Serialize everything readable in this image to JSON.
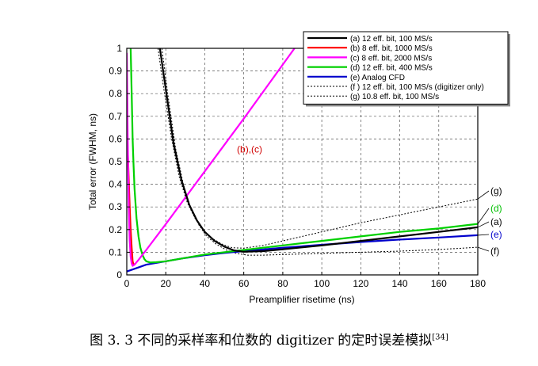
{
  "chart_data": {
    "type": "line",
    "xlabel": "Preamplifier risetime (ns)",
    "ylabel": "Total error (FWHM, ns)",
    "xlim": [
      0,
      180
    ],
    "ylim": [
      0,
      1
    ],
    "xticks": [
      "0",
      "20",
      "40",
      "60",
      "80",
      "100",
      "120",
      "140",
      "160",
      "180"
    ],
    "yticks": [
      "0",
      "0.1",
      "0.2",
      "0.3",
      "0.4",
      "0.5",
      "0.6",
      "0.7",
      "0.8",
      "0.9",
      "1"
    ],
    "grid": true,
    "legend_position": "top-right",
    "series": [
      {
        "name": "(a) 12 eff. bit, 100 MS/s",
        "end_label": "(a)",
        "color": "#000000",
        "style": "solid",
        "points": [
          [
            17,
            1.0
          ],
          [
            20,
            0.82
          ],
          [
            24,
            0.58
          ],
          [
            28,
            0.42
          ],
          [
            32,
            0.31
          ],
          [
            36,
            0.24
          ],
          [
            40,
            0.19
          ],
          [
            45,
            0.15
          ],
          [
            50,
            0.125
          ],
          [
            55,
            0.108
          ],
          [
            60,
            0.102
          ],
          [
            70,
            0.105
          ],
          [
            80,
            0.113
          ],
          [
            100,
            0.13
          ],
          [
            120,
            0.15
          ],
          [
            140,
            0.17
          ],
          [
            160,
            0.19
          ],
          [
            180,
            0.21
          ]
        ]
      },
      {
        "name": "(b) 8 eff. bit, 1000 MS/s",
        "end_label": "",
        "color": "#ff0000",
        "style": "solid",
        "points": [
          [
            0,
            0.68
          ],
          [
            0.5,
            0.55
          ],
          [
            1,
            0.42
          ],
          [
            1.5,
            0.3
          ],
          [
            2,
            0.2
          ],
          [
            2.5,
            0.12
          ],
          [
            3,
            0.06
          ],
          [
            3.5,
            0.045
          ],
          [
            4,
            0.05
          ]
        ]
      },
      {
        "name": "(c) 8 eff. bit, 2000 MS/s",
        "end_label": "",
        "color": "#ff00ff",
        "style": "solid",
        "points": [
          [
            0,
            0.98
          ],
          [
            0.5,
            0.6
          ],
          [
            1,
            0.3
          ],
          [
            1.5,
            0.15
          ],
          [
            2,
            0.08
          ],
          [
            2.5,
            0.05
          ],
          [
            3,
            0.04
          ],
          [
            4,
            0.045
          ],
          [
            6,
            0.066
          ],
          [
            10,
            0.11
          ],
          [
            20,
            0.224
          ],
          [
            40,
            0.457
          ],
          [
            60,
            0.69
          ],
          [
            86,
            1.0
          ]
        ]
      },
      {
        "name": "(d) 12 eff. bit, 400 MS/s",
        "end_label": "(d)",
        "color": "#00d000",
        "style": "solid",
        "points": [
          [
            2,
            1.0
          ],
          [
            2.5,
            0.8
          ],
          [
            3,
            0.6
          ],
          [
            3.5,
            0.48
          ],
          [
            4,
            0.38
          ],
          [
            5,
            0.25
          ],
          [
            6,
            0.17
          ],
          [
            7,
            0.12
          ],
          [
            8,
            0.09
          ],
          [
            9,
            0.07
          ],
          [
            10,
            0.06
          ],
          [
            12,
            0.055
          ],
          [
            15,
            0.056
          ],
          [
            20,
            0.06
          ],
          [
            30,
            0.075
          ],
          [
            40,
            0.09
          ],
          [
            60,
            0.11
          ],
          [
            80,
            0.13
          ],
          [
            100,
            0.15
          ],
          [
            120,
            0.17
          ],
          [
            140,
            0.19
          ],
          [
            160,
            0.205
          ],
          [
            180,
            0.225
          ]
        ]
      },
      {
        "name": "(e) Analog CFD",
        "end_label": "(e)",
        "color": "#0000cc",
        "style": "solid",
        "points": [
          [
            0,
            0.015
          ],
          [
            5,
            0.03
          ],
          [
            10,
            0.045
          ],
          [
            20,
            0.06
          ],
          [
            30,
            0.075
          ],
          [
            40,
            0.087
          ],
          [
            50,
            0.097
          ],
          [
            60,
            0.105
          ],
          [
            80,
            0.12
          ],
          [
            100,
            0.133
          ],
          [
            120,
            0.145
          ],
          [
            140,
            0.156
          ],
          [
            160,
            0.165
          ],
          [
            180,
            0.175
          ]
        ]
      },
      {
        "name": "(f ) 12 eff. bit, 100 MS/s (digitizer only)",
        "end_label": "(f)",
        "color": "#000000",
        "style": "dotted",
        "points": [
          [
            18,
            1.0
          ],
          [
            21,
            0.8
          ],
          [
            25,
            0.56
          ],
          [
            29,
            0.4
          ],
          [
            33,
            0.29
          ],
          [
            37,
            0.22
          ],
          [
            41,
            0.17
          ],
          [
            46,
            0.135
          ],
          [
            51,
            0.11
          ],
          [
            56,
            0.095
          ],
          [
            62,
            0.087
          ],
          [
            70,
            0.087
          ],
          [
            80,
            0.09
          ],
          [
            100,
            0.095
          ],
          [
            120,
            0.1
          ],
          [
            140,
            0.105
          ],
          [
            160,
            0.112
          ],
          [
            180,
            0.122
          ]
        ]
      },
      {
        "name": "(g) 10.8 eff. bit, 100 MS/s",
        "end_label": "(g)",
        "color": "#000000",
        "style": "dotted",
        "points": [
          [
            16,
            1.0
          ],
          [
            19,
            0.82
          ],
          [
            23,
            0.6
          ],
          [
            27,
            0.43
          ],
          [
            31,
            0.32
          ],
          [
            35,
            0.25
          ],
          [
            39,
            0.2
          ],
          [
            44,
            0.16
          ],
          [
            49,
            0.135
          ],
          [
            54,
            0.12
          ],
          [
            60,
            0.118
          ],
          [
            70,
            0.13
          ],
          [
            80,
            0.15
          ],
          [
            100,
            0.19
          ],
          [
            120,
            0.23
          ],
          [
            140,
            0.265
          ],
          [
            160,
            0.3
          ],
          [
            180,
            0.335
          ]
        ]
      }
    ],
    "annotations": [
      {
        "text": "(b),(c)",
        "x": 63,
        "y": 0.54,
        "color": "#d00000"
      }
    ]
  },
  "caption": {
    "text": "图 3. 3 不同的采样率和位数的 digitizer 的定时误差模拟",
    "ref": "[34]"
  }
}
